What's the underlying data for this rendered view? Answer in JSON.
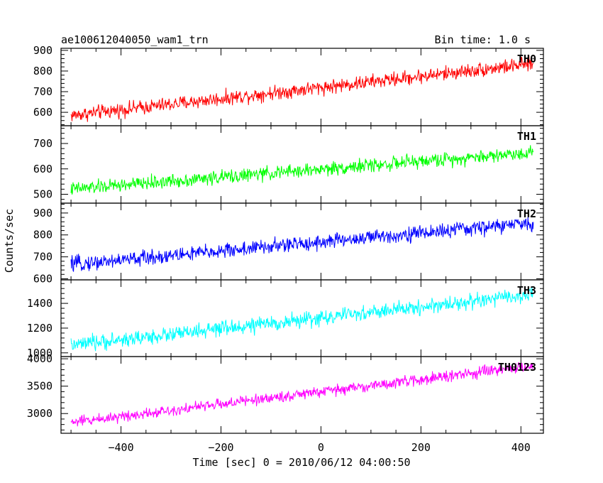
{
  "header": {
    "title": "ae100612040050_wam1_trn",
    "bin_time": "Bin time: 1.0 s"
  },
  "axes": {
    "ylabel": "Counts/sec",
    "xlabel": "Time [sec] 0 = 2010/06/12 04:00:50"
  },
  "chart_data": [
    {
      "type": "line",
      "name": "TH0",
      "color": "#ff0000",
      "x_start": -500,
      "x_end": 425,
      "x_step": 1,
      "trend": {
        "start": 585,
        "end": 835
      },
      "noise_amplitude": 45,
      "xlim": [
        -520,
        445
      ],
      "ylim": [
        535,
        910
      ],
      "yticks": [
        600,
        700,
        800,
        900
      ]
    },
    {
      "type": "line",
      "name": "TH1",
      "color": "#00ff00",
      "x_start": -500,
      "x_end": 425,
      "x_step": 1,
      "trend": {
        "start": 520,
        "end": 665
      },
      "noise_amplitude": 35,
      "xlim": [
        -520,
        445
      ],
      "ylim": [
        465,
        770
      ],
      "yticks": [
        500,
        600,
        700
      ]
    },
    {
      "type": "line",
      "name": "TH2",
      "color": "#0000ff",
      "x_start": -500,
      "x_end": 425,
      "x_step": 1,
      "trend": {
        "start": 665,
        "end": 855
      },
      "noise_amplitude": 45,
      "xlim": [
        -520,
        445
      ],
      "ylim": [
        595,
        945
      ],
      "yticks": [
        600,
        700,
        800,
        900
      ]
    },
    {
      "type": "line",
      "name": "TH3",
      "color": "#00ffff",
      "x_start": -500,
      "x_end": 425,
      "x_step": 1,
      "trend": {
        "start": 1060,
        "end": 1470
      },
      "noise_amplitude": 80,
      "xlim": [
        -520,
        445
      ],
      "ylim": [
        970,
        1590
      ],
      "yticks": [
        1000,
        1200,
        1400
      ]
    },
    {
      "type": "line",
      "name": "TH0123",
      "color": "#ff00ff",
      "x_start": -500,
      "x_end": 425,
      "x_step": 1,
      "trend": {
        "start": 2840,
        "end": 3870
      },
      "noise_amplitude": 130,
      "xlim": [
        -520,
        445
      ],
      "ylim": [
        2640,
        4040
      ],
      "yticks": [
        3000,
        3500,
        4000
      ]
    }
  ],
  "x_axis": {
    "ticks": [
      -400,
      -200,
      0,
      200,
      400
    ],
    "tick_labels": [
      "−400",
      "−200",
      "0",
      "200",
      "400"
    ],
    "minor_step": 50
  }
}
